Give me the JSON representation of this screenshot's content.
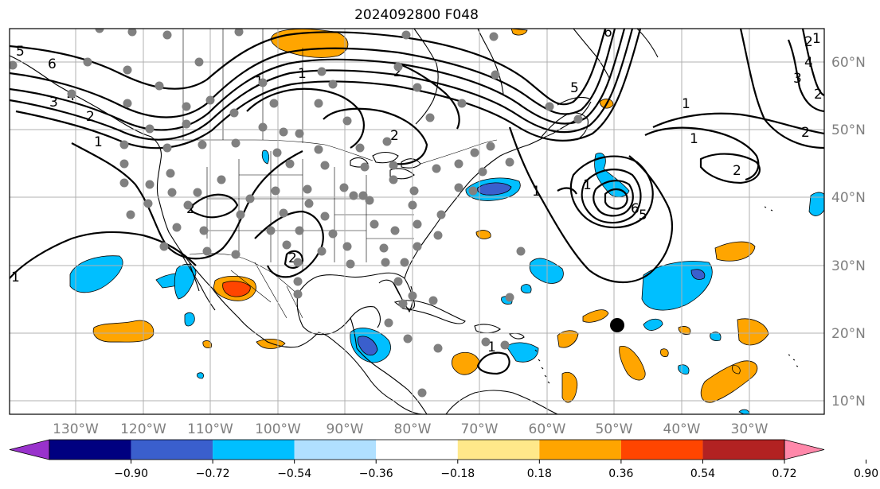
{
  "title": "2024092800 F048",
  "map": {
    "lon_range": [
      -140,
      -19
    ],
    "lat_range": [
      8,
      65
    ],
    "lon_ticks": [
      "130°W",
      "120°W",
      "110°W",
      "100°W",
      "90°W",
      "80°W",
      "70°W",
      "60°W",
      "50°W",
      "40°W",
      "30°W"
    ],
    "lat_ticks": [
      "60°N",
      "50°N",
      "40°N",
      "30°N",
      "20°N",
      "10°N"
    ],
    "grid": true,
    "coastlines": true,
    "borders": true
  },
  "contours": {
    "color": "#000000",
    "labels": [
      "5",
      "6",
      "1",
      "2",
      "3",
      "4",
      "1",
      "2",
      "1",
      "2",
      "2",
      "2",
      "1",
      "5",
      "6",
      "1",
      "1",
      "2",
      "2",
      "3",
      "4",
      "1",
      "1",
      "6",
      "5",
      "2",
      "1",
      "2",
      "1"
    ]
  },
  "shading": {
    "positive_colors": [
      "#ffe88a",
      "#ffa500",
      "#ff4500",
      "#b22222",
      "#ff88aa"
    ],
    "negative_colors": [
      "#b0e0ff",
      "#00bfff",
      "#3a5fcd",
      "#000080",
      "#9932cc"
    ]
  },
  "markers": {
    "station_color": "#808080",
    "storm_center": {
      "lon": -50.5,
      "lat": 21.1,
      "color": "#000000"
    }
  },
  "colorbar": {
    "levels": [
      "−0.90",
      "−0.72",
      "−0.54",
      "−0.36",
      "−0.18",
      "0.18",
      "0.36",
      "0.54",
      "0.72",
      "0.90"
    ],
    "colors": [
      "#9932cc",
      "#000080",
      "#3a5fcd",
      "#00bfff",
      "#b0e0ff",
      "#ffffff",
      "#ffe88a",
      "#ffa500",
      "#ff4500",
      "#b22222",
      "#ff88aa"
    ]
  }
}
